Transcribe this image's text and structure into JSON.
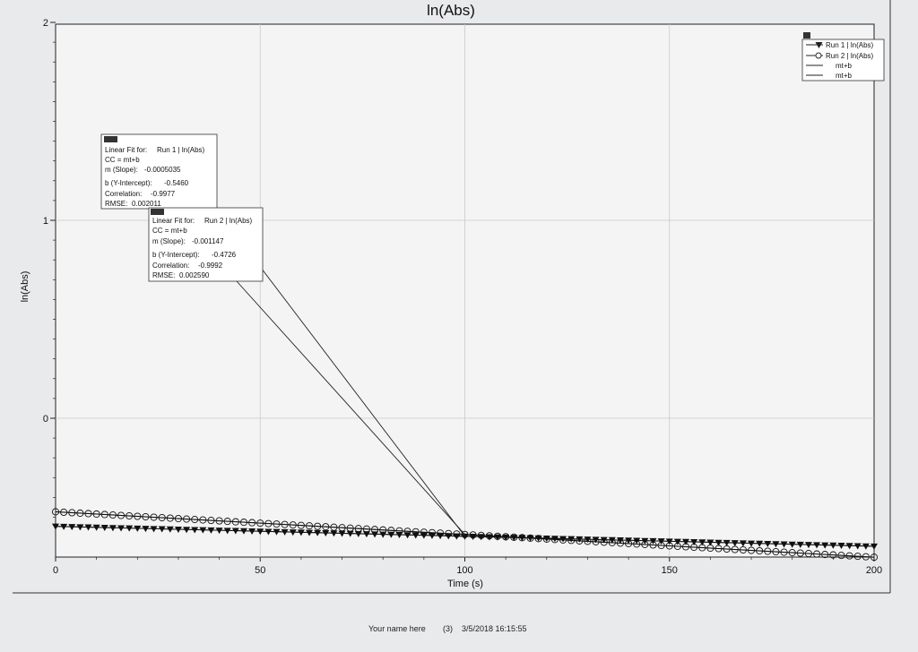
{
  "footer": {
    "name": "Your name here",
    "run": "(3)",
    "timestamp": "3/5/2018 16:15:55"
  },
  "chart_data": {
    "type": "scatter",
    "title": "ln(Abs)",
    "xlabel": "Time (s)",
    "ylabel": "ln(Abs)",
    "xlim": [
      0,
      200
    ],
    "ylim": [
      -0.7,
      2
    ],
    "x_ticks": [
      0,
      50,
      100,
      150,
      200
    ],
    "y_ticks": [
      0,
      1,
      2
    ],
    "grid": true,
    "legend_position": "top-right",
    "legend": [
      {
        "label": "Run 1 | ln(Abs)",
        "marker": "triangle-down"
      },
      {
        "label": "Run 2 | ln(Abs)",
        "marker": "circle"
      },
      {
        "label": "mt+b",
        "marker": "line"
      },
      {
        "label": "mt+b",
        "marker": "line"
      }
    ],
    "series": [
      {
        "name": "Run 1 | ln(Abs)",
        "marker": "triangle-down",
        "slope": -0.0005035,
        "intercept": -0.546,
        "x_start": 0,
        "x_end": 200,
        "x_step": 2
      },
      {
        "name": "Run 2 | ln(Abs)",
        "marker": "circle",
        "slope": -0.001147,
        "intercept": -0.4726,
        "x_start": 0,
        "x_end": 200,
        "x_step": 2
      }
    ],
    "fits": [
      {
        "title_prefix": "Linear Fit for:",
        "title_run": "Run 1 | ln(Abs)",
        "equation": "CC = mt+b",
        "slope_label": "m (Slope):",
        "slope": "-0.0005035",
        "intercept_label": "b (Y-Intercept):",
        "intercept": "-0.5460",
        "correlation_label": "Correlation:",
        "correlation": "-0.9977",
        "rmse_label": "RMSE:",
        "rmse": "0.002011",
        "anchor": {
          "x": 100,
          "y": -0.596
        }
      },
      {
        "title_prefix": "Linear Fit for:",
        "title_run": "Run 2 | ln(Abs)",
        "equation": "CC = mt+b",
        "slope_label": "m (Slope):",
        "slope": "-0.001147",
        "intercept_label": "b (Y-Intercept):",
        "intercept": "-0.4726",
        "correlation_label": "Correlation:",
        "correlation": "-0.9992",
        "rmse_label": "RMSE:",
        "rmse": "0.002590",
        "anchor": {
          "x": 100,
          "y": -0.587
        }
      }
    ]
  }
}
